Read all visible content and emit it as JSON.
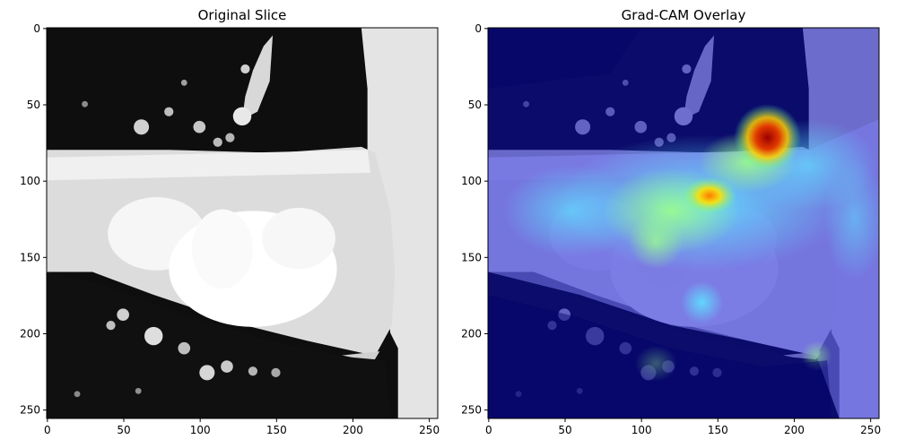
{
  "panels": [
    {
      "title": "Original Slice",
      "image_kind": "grayscale CT slice",
      "x_ticks": [
        "0",
        "50",
        "100",
        "150",
        "200",
        "250"
      ],
      "y_ticks": [
        "0",
        "50",
        "100",
        "150",
        "200",
        "250"
      ]
    },
    {
      "title": "Grad-CAM Overlay",
      "image_kind": "CT slice with jet heatmap overlay",
      "x_ticks": [
        "0",
        "50",
        "100",
        "150",
        "200",
        "250"
      ],
      "y_ticks": [
        "0",
        "50",
        "100",
        "150",
        "200",
        "250"
      ]
    }
  ],
  "axis_range": {
    "min": 0,
    "max": 256
  },
  "tick_values": [
    0,
    50,
    100,
    150,
    200,
    250
  ],
  "colors": {
    "lung_dark": "#0e0e0e",
    "tissue_light": "#e6e6e6",
    "heat_low": "#1010a0",
    "heat_mid": "#40c0ff",
    "heat_high": "#b00000"
  }
}
